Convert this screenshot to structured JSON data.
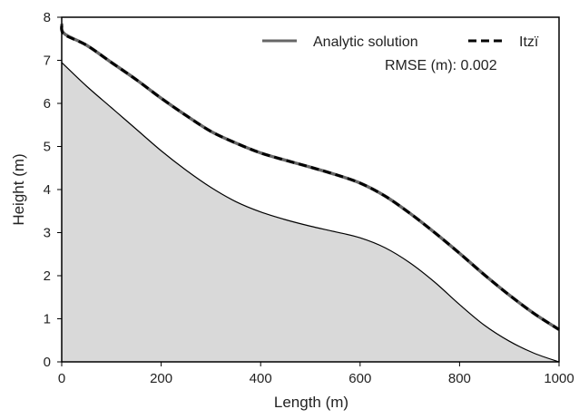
{
  "chart_data": {
    "type": "line",
    "xlabel": "Length (m)",
    "ylabel": "Height (m)",
    "xlim": [
      0,
      1000
    ],
    "ylim": [
      0,
      8
    ],
    "xticks": [
      "0",
      "200",
      "400",
      "600",
      "800",
      "1000"
    ],
    "yticks": [
      "0",
      "1",
      "2",
      "3",
      "4",
      "5",
      "6",
      "7",
      "8"
    ],
    "grid": false,
    "legend_position": "top-right",
    "annotation": "RMSE (m): 0.002",
    "bed": {
      "x": [
        0,
        50,
        100,
        150,
        200,
        250,
        300,
        350,
        400,
        450,
        500,
        550,
        600,
        650,
        700,
        750,
        800,
        850,
        900,
        950,
        1000
      ],
      "y": [
        6.95,
        6.4,
        5.9,
        5.4,
        4.9,
        4.45,
        4.05,
        3.72,
        3.48,
        3.3,
        3.15,
        3.02,
        2.88,
        2.65,
        2.3,
        1.85,
        1.33,
        0.85,
        0.48,
        0.2,
        0.0
      ],
      "fill": "#d9d9d9"
    },
    "series": [
      {
        "name": "Analytic solution",
        "style": "solid",
        "color": "#666666",
        "x": [
          0,
          5,
          50,
          100,
          150,
          200,
          250,
          300,
          350,
          400,
          450,
          500,
          550,
          600,
          650,
          700,
          750,
          800,
          850,
          900,
          950,
          1000
        ],
        "y": [
          7.85,
          7.62,
          7.35,
          6.95,
          6.55,
          6.12,
          5.72,
          5.35,
          5.08,
          4.85,
          4.68,
          4.52,
          4.35,
          4.15,
          3.85,
          3.45,
          3.0,
          2.52,
          2.02,
          1.55,
          1.12,
          0.75
        ]
      },
      {
        "name": "Itzï",
        "style": "dashed",
        "color": "#000000",
        "x": [
          0,
          5,
          50,
          100,
          150,
          200,
          250,
          300,
          350,
          400,
          450,
          500,
          550,
          600,
          650,
          700,
          750,
          800,
          850,
          900,
          950,
          1000
        ],
        "y": [
          7.8,
          7.6,
          7.35,
          6.95,
          6.55,
          6.12,
          5.72,
          5.35,
          5.08,
          4.85,
          4.68,
          4.52,
          4.35,
          4.15,
          3.85,
          3.45,
          3.0,
          2.52,
          2.02,
          1.55,
          1.12,
          0.75
        ]
      }
    ]
  }
}
